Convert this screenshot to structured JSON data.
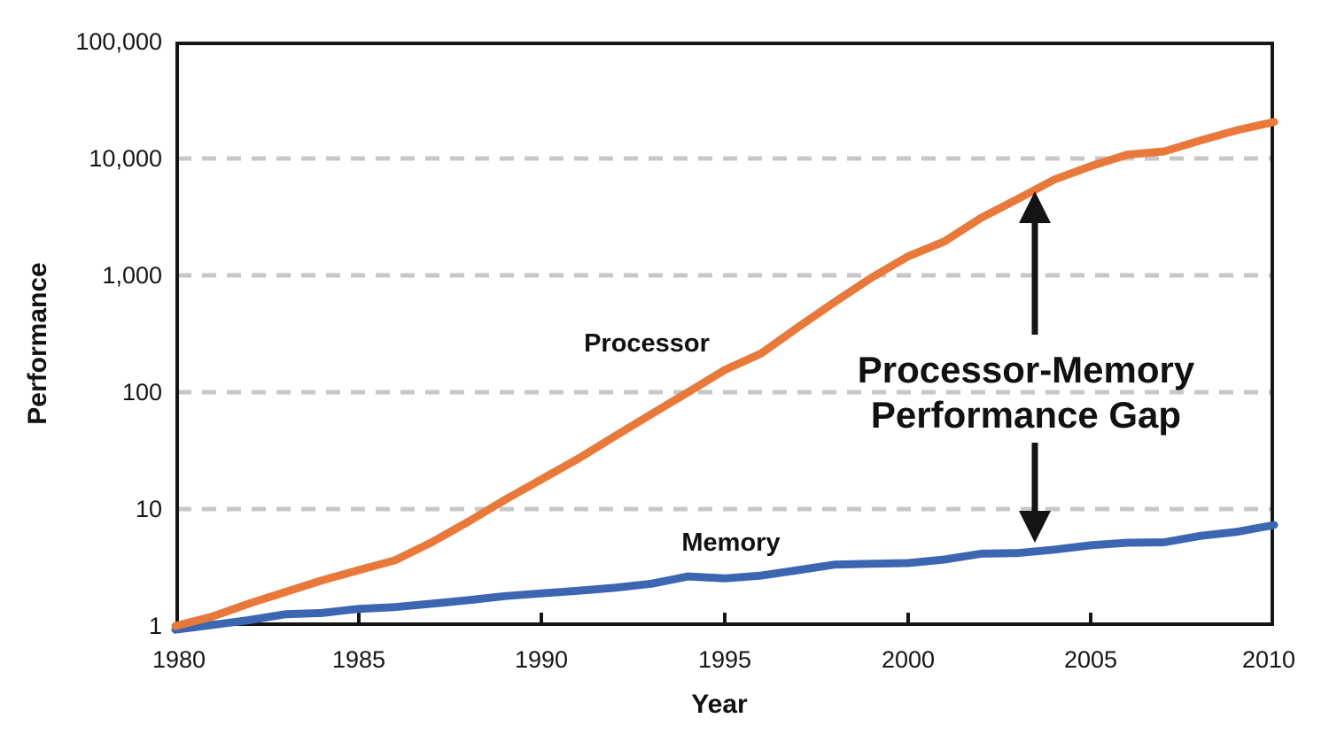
{
  "figure": {
    "background_color": "#ffffff",
    "text_color": "#111111"
  },
  "chart_data": {
    "type": "line",
    "title": "",
    "xlabel": "Year",
    "ylabel": "Performance",
    "x_scale": "linear",
    "y_scale": "log",
    "xlim": [
      1980,
      2010
    ],
    "ylim": [
      1,
      100000
    ],
    "grid": "horizontal dashed gridlines at powers of 10",
    "legend_position": "inline labels on curves",
    "x_tick_labels": [
      "1980",
      "1985",
      "1990",
      "1995",
      "2000",
      "2005",
      "2010"
    ],
    "y_tick_labels": [
      "1",
      "10",
      "100",
      "1,000",
      "10,000",
      "100,000"
    ],
    "x": [
      1980,
      1981,
      1982,
      1983,
      1984,
      1985,
      1986,
      1987,
      1988,
      1989,
      1990,
      1991,
      1992,
      1993,
      1994,
      1995,
      1996,
      1997,
      1998,
      1999,
      2000,
      2001,
      2002,
      2003,
      2004,
      2005,
      2006,
      2007,
      2008,
      2009,
      2010
    ],
    "series": [
      {
        "name": "Memory",
        "label": "Memory",
        "color": "#3D66B2",
        "values": [
          0.93,
          1.02,
          1.12,
          1.26,
          1.29,
          1.4,
          1.45,
          1.55,
          1.66,
          1.8,
          1.9,
          2.0,
          2.12,
          2.3,
          2.65,
          2.55,
          2.7,
          3.0,
          3.35,
          3.4,
          3.45,
          3.7,
          4.15,
          4.2,
          4.5,
          4.9,
          5.15,
          5.2,
          5.9,
          6.4,
          7.3
        ]
      },
      {
        "name": "Processor",
        "label": "Processor",
        "color": "#E8793B",
        "values": [
          1,
          1.2,
          1.55,
          1.95,
          2.45,
          3.0,
          3.65,
          5.2,
          7.8,
          12,
          18,
          27,
          42,
          65,
          100,
          155,
          215,
          360,
          590,
          950,
          1450,
          1950,
          3100,
          4500,
          6600,
          8600,
          10800,
          11500,
          14300,
          17500,
          20500
        ]
      }
    ],
    "annotation": {
      "line1": "Processor-Memory",
      "line2": "Performance Gap",
      "arrow": "double-headed vertical black arrow between the Processor and Memory curves near year 2003"
    },
    "gridline_color": "#c7c7c7",
    "axis_color": "#161616"
  }
}
